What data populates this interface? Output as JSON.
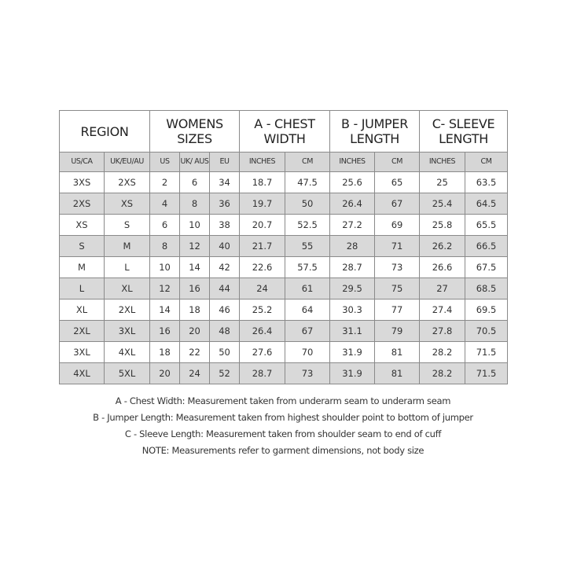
{
  "headers": [
    "REGION",
    "WOMENS SIZES",
    "A - CHEST WIDTH",
    "B - JUMPER LENGTH",
    "C- SLEEVE LENGTH"
  ],
  "subheaders": [
    "US/CA",
    "UK/EU/AU",
    "US",
    "UK/ AUS",
    "EU",
    "INCHES",
    "CM",
    "INCHES",
    "CM",
    "INCHES",
    "CM"
  ],
  "rows": [
    [
      "3XS",
      "2XS",
      "2",
      "6",
      "34",
      "18.7",
      "47.5",
      "25.6",
      "65",
      "25",
      "63.5"
    ],
    [
      "2XS",
      "XS",
      "4",
      "8",
      "36",
      "19.7",
      "50",
      "26.4",
      "67",
      "25.4",
      "64.5"
    ],
    [
      "XS",
      "S",
      "6",
      "10",
      "38",
      "20.7",
      "52.5",
      "27.2",
      "69",
      "25.8",
      "65.5"
    ],
    [
      "S",
      "M",
      "8",
      "12",
      "40",
      "21.7",
      "55",
      "28",
      "71",
      "26.2",
      "66.5"
    ],
    [
      "M",
      "L",
      "10",
      "14",
      "42",
      "22.6",
      "57.5",
      "28.7",
      "73",
      "26.6",
      "67.5"
    ],
    [
      "L",
      "XL",
      "12",
      "16",
      "44",
      "24",
      "61",
      "29.5",
      "75",
      "27",
      "68.5"
    ],
    [
      "XL",
      "2XL",
      "14",
      "18",
      "46",
      "25.2",
      "64",
      "30.3",
      "77",
      "27.4",
      "69.5"
    ],
    [
      "2XL",
      "3XL",
      "16",
      "20",
      "48",
      "26.4",
      "67",
      "31.1",
      "79",
      "27.8",
      "70.5"
    ],
    [
      "3XL",
      "4XL",
      "18",
      "22",
      "50",
      "27.6",
      "70",
      "31.9",
      "81",
      "28.2",
      "71.5"
    ],
    [
      "4XL",
      "5XL",
      "20",
      "24",
      "52",
      "28.7",
      "73",
      "31.9",
      "81",
      "28.2",
      "71.5"
    ]
  ],
  "notes": [
    "A - Chest Width: Measurement taken from underarm seam to underarm seam",
    "B - Jumper Length: Measurement taken from highest shoulder point to bottom of jumper",
    "C - Sleeve Length: Measurement taken from shoulder seam to end of cuff",
    "NOTE: Measurements refer to garment dimensions, not body size"
  ]
}
